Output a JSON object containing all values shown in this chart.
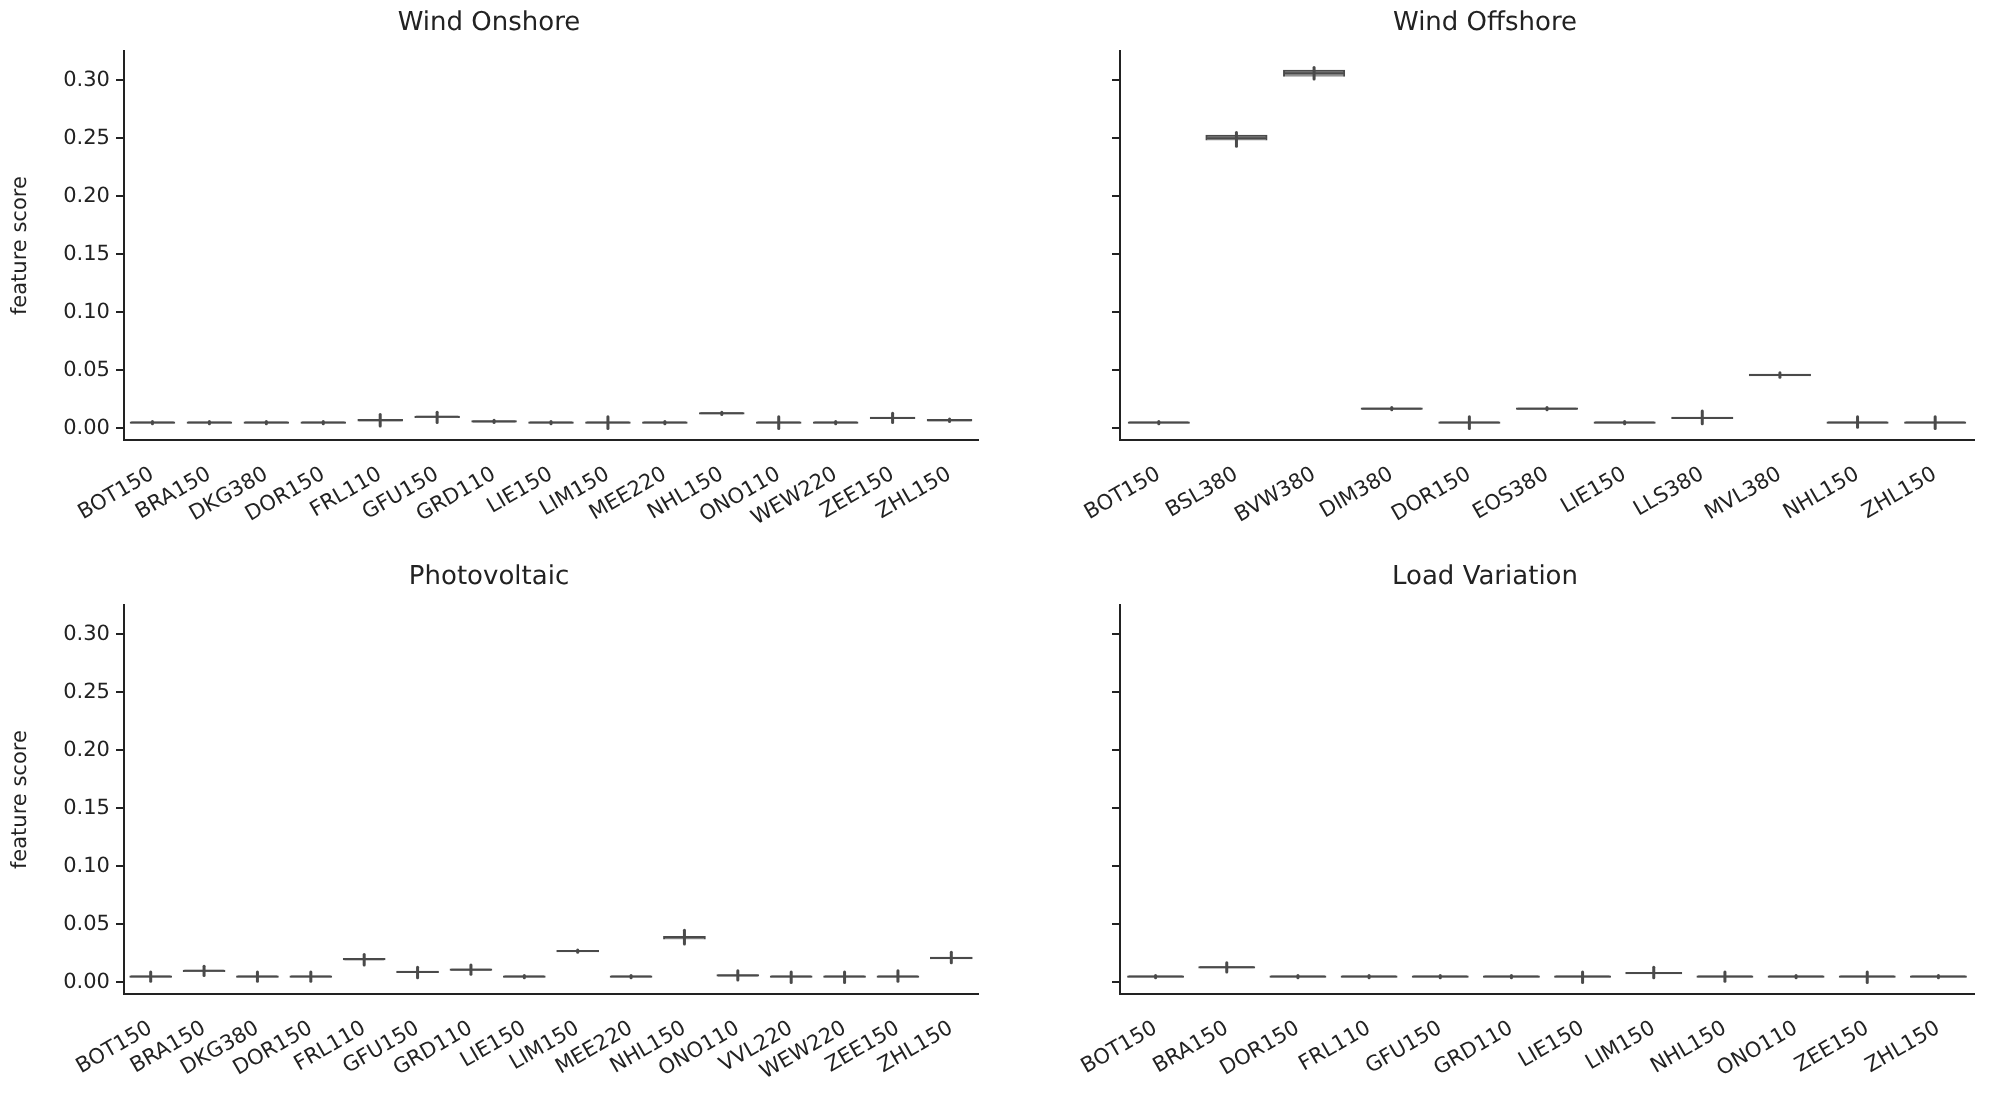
{
  "chart_data": [
    {
      "type": "box",
      "title": "Wind Onshore",
      "ylabel": "feature score",
      "categories": [
        "BOT150",
        "BRA150",
        "DKG380",
        "DOR150",
        "FRL110",
        "GFU150",
        "GRD110",
        "LIE150",
        "LIM150",
        "MEE220",
        "NHL150",
        "ONO110",
        "WEW220",
        "ZEE150",
        "ZHL150"
      ],
      "ylim": [
        -0.01,
        0.325
      ],
      "yticks": [
        {
          "value": 0,
          "label": "0.00"
        },
        {
          "value": 0.05,
          "label": "0.05"
        },
        {
          "value": 0.1,
          "label": "0.10"
        },
        {
          "value": 0.15,
          "label": "0.15"
        },
        {
          "value": 0.2,
          "label": "0.20"
        },
        {
          "value": 0.25,
          "label": "0.25"
        },
        {
          "value": 0.3,
          "label": "0.30"
        }
      ],
      "color": "#4a4a4a",
      "boxes": [
        {
          "low": 0.004,
          "q1": 0.004,
          "median": 0.005,
          "q3": 0.006,
          "high": 0.006
        },
        {
          "low": 0.004,
          "q1": 0.004,
          "median": 0.005,
          "q3": 0.006,
          "high": 0.006
        },
        {
          "low": 0.004,
          "q1": 0.004,
          "median": 0.005,
          "q3": 0.006,
          "high": 0.006
        },
        {
          "low": 0.004,
          "q1": 0.004,
          "median": 0.005,
          "q3": 0.006,
          "high": 0.006
        },
        {
          "low": 0.002,
          "q1": 0.006,
          "median": 0.007,
          "q3": 0.008,
          "high": 0.012
        },
        {
          "low": 0.005,
          "q1": 0.009,
          "median": 0.01,
          "q3": 0.011,
          "high": 0.014
        },
        {
          "low": 0.005,
          "q1": 0.005,
          "median": 0.006,
          "q3": 0.007,
          "high": 0.007
        },
        {
          "low": 0.004,
          "q1": 0.004,
          "median": 0.005,
          "q3": 0.006,
          "high": 0.006
        },
        {
          "low": 0,
          "q1": 0.004,
          "median": 0.005,
          "q3": 0.006,
          "high": 0.01
        },
        {
          "low": 0.004,
          "q1": 0.004,
          "median": 0.005,
          "q3": 0.006,
          "high": 0.006
        },
        {
          "low": 0.012,
          "q1": 0.012,
          "median": 0.013,
          "q3": 0.014,
          "high": 0.014
        },
        {
          "low": 0,
          "q1": 0.004,
          "median": 0.005,
          "q3": 0.006,
          "high": 0.01
        },
        {
          "low": 0.004,
          "q1": 0.004,
          "median": 0.005,
          "q3": 0.006,
          "high": 0.006
        },
        {
          "low": 0.005,
          "q1": 0.008,
          "median": 0.009,
          "q3": 0.01,
          "high": 0.013
        },
        {
          "low": 0.006,
          "q1": 0.006,
          "median": 0.007,
          "q3": 0.008,
          "high": 0.008
        }
      ]
    },
    {
      "type": "box",
      "title": "Wind Offshore",
      "categories": [
        "BOT150",
        "BSL380",
        "BVW380",
        "DIM380",
        "DOR150",
        "EOS380",
        "LIE150",
        "LLS380",
        "MVL380",
        "NHL150",
        "ZHL150"
      ],
      "ylim": [
        -0.01,
        0.325
      ],
      "yticks": [
        {
          "value": 0,
          "label": null
        },
        {
          "value": 0.05,
          "label": null
        },
        {
          "value": 0.1,
          "label": null
        },
        {
          "value": 0.15,
          "label": null
        },
        {
          "value": 0.2,
          "label": null
        },
        {
          "value": 0.25,
          "label": null
        },
        {
          "value": 0.3,
          "label": null
        }
      ],
      "tick_labels": "x",
      "color": "#4a4a4a",
      "boxes": [
        {
          "low": 0.004,
          "q1": 0.004,
          "median": 0.005,
          "q3": 0.006,
          "high": 0.006
        },
        {
          "low": 0.243,
          "q1": 0.248,
          "median": 0.25,
          "q3": 0.253,
          "high": 0.255
        },
        {
          "low": 0.301,
          "q1": 0.303,
          "median": 0.306,
          "q3": 0.309,
          "high": 0.311
        },
        {
          "low": 0.016,
          "q1": 0.016,
          "median": 0.017,
          "q3": 0.018,
          "high": 0.018
        },
        {
          "low": 0,
          "q1": 0.004,
          "median": 0.005,
          "q3": 0.006,
          "high": 0.01
        },
        {
          "low": 0.016,
          "q1": 0.016,
          "median": 0.017,
          "q3": 0.018,
          "high": 0.018
        },
        {
          "low": 0.004,
          "q1": 0.004,
          "median": 0.005,
          "q3": 0.006,
          "high": 0.006
        },
        {
          "low": 0.004,
          "q1": 0.008,
          "median": 0.009,
          "q3": 0.01,
          "high": 0.015
        },
        {
          "low": 0.044,
          "q1": 0.045,
          "median": 0.046,
          "q3": 0.047,
          "high": 0.048
        },
        {
          "low": 0.001,
          "q1": 0.004,
          "median": 0.005,
          "q3": 0.006,
          "high": 0.01
        },
        {
          "low": 0,
          "q1": 0.004,
          "median": 0.005,
          "q3": 0.006,
          "high": 0.01
        }
      ]
    },
    {
      "type": "box",
      "title": "Photovoltaic",
      "ylabel": "feature score",
      "categories": [
        "BOT150",
        "BRA150",
        "DKG380",
        "DOR150",
        "FRL110",
        "GFU150",
        "GRD110",
        "LIE150",
        "LIM150",
        "MEE220",
        "NHL150",
        "ONO110",
        "VVL220",
        "WEW220",
        "ZEE150",
        "ZHL150"
      ],
      "ylim": [
        -0.01,
        0.325
      ],
      "yticks": [
        {
          "value": 0,
          "label": "0.00"
        },
        {
          "value": 0.05,
          "label": "0.05"
        },
        {
          "value": 0.1,
          "label": "0.10"
        },
        {
          "value": 0.15,
          "label": "0.15"
        },
        {
          "value": 0.2,
          "label": "0.20"
        },
        {
          "value": 0.25,
          "label": "0.25"
        },
        {
          "value": 0.3,
          "label": "0.30"
        }
      ],
      "color": "#4a4a4a",
      "boxes": [
        {
          "low": 0.001,
          "q1": 0.004,
          "median": 0.005,
          "q3": 0.006,
          "high": 0.009
        },
        {
          "low": 0.006,
          "q1": 0.009,
          "median": 0.01,
          "q3": 0.011,
          "high": 0.014
        },
        {
          "low": 0.001,
          "q1": 0.004,
          "median": 0.005,
          "q3": 0.006,
          "high": 0.009
        },
        {
          "low": 0.001,
          "q1": 0.004,
          "median": 0.005,
          "q3": 0.006,
          "high": 0.009
        },
        {
          "low": 0.015,
          "q1": 0.019,
          "median": 0.02,
          "q3": 0.021,
          "high": 0.024
        },
        {
          "low": 0.004,
          "q1": 0.008,
          "median": 0.009,
          "q3": 0.01,
          "high": 0.013
        },
        {
          "low": 0.007,
          "q1": 0.01,
          "median": 0.011,
          "q3": 0.012,
          "high": 0.015
        },
        {
          "low": 0.004,
          "q1": 0.004,
          "median": 0.005,
          "q3": 0.006,
          "high": 0.006
        },
        {
          "low": 0.026,
          "q1": 0.026,
          "median": 0.027,
          "q3": 0.028,
          "high": 0.028
        },
        {
          "low": 0.004,
          "q1": 0.004,
          "median": 0.005,
          "q3": 0.006,
          "high": 0.006
        },
        {
          "low": 0.033,
          "q1": 0.037,
          "median": 0.039,
          "q3": 0.04,
          "high": 0.045
        },
        {
          "low": 0.002,
          "q1": 0.005,
          "median": 0.006,
          "q3": 0.007,
          "high": 0.01
        },
        {
          "low": 0,
          "q1": 0.004,
          "median": 0.005,
          "q3": 0.006,
          "high": 0.009
        },
        {
          "low": 0,
          "q1": 0.004,
          "median": 0.005,
          "q3": 0.006,
          "high": 0.009
        },
        {
          "low": 0.001,
          "q1": 0.004,
          "median": 0.005,
          "q3": 0.006,
          "high": 0.01
        },
        {
          "low": 0.017,
          "q1": 0.02,
          "median": 0.021,
          "q3": 0.022,
          "high": 0.026
        }
      ]
    },
    {
      "type": "box",
      "title": "Load Variation",
      "categories": [
        "BOT150",
        "BRA150",
        "DOR150",
        "FRL110",
        "GFU150",
        "GRD110",
        "LIE150",
        "LIM150",
        "NHL150",
        "ONO110",
        "ZEE150",
        "ZHL150"
      ],
      "ylim": [
        -0.01,
        0.325
      ],
      "yticks": [
        {
          "value": 0,
          "label": null
        },
        {
          "value": 0.05,
          "label": null
        },
        {
          "value": 0.1,
          "label": null
        },
        {
          "value": 0.15,
          "label": null
        },
        {
          "value": 0.2,
          "label": null
        },
        {
          "value": 0.25,
          "label": null
        },
        {
          "value": 0.3,
          "label": null
        }
      ],
      "tick_labels": "x",
      "color": "#4a4a4a",
      "boxes": [
        {
          "low": 0.004,
          "q1": 0.004,
          "median": 0.005,
          "q3": 0.006,
          "high": 0.006
        },
        {
          "low": 0.009,
          "q1": 0.012,
          "median": 0.013,
          "q3": 0.014,
          "high": 0.017
        },
        {
          "low": 0.004,
          "q1": 0.004,
          "median": 0.005,
          "q3": 0.006,
          "high": 0.006
        },
        {
          "low": 0.004,
          "q1": 0.004,
          "median": 0.005,
          "q3": 0.006,
          "high": 0.006
        },
        {
          "low": 0.004,
          "q1": 0.004,
          "median": 0.005,
          "q3": 0.006,
          "high": 0.006
        },
        {
          "low": 0.004,
          "q1": 0.004,
          "median": 0.005,
          "q3": 0.006,
          "high": 0.006
        },
        {
          "low": 0,
          "q1": 0.004,
          "median": 0.005,
          "q3": 0.006,
          "high": 0.009
        },
        {
          "low": 0.004,
          "q1": 0.007,
          "median": 0.008,
          "q3": 0.009,
          "high": 0.013
        },
        {
          "low": 0.001,
          "q1": 0.004,
          "median": 0.005,
          "q3": 0.006,
          "high": 0.009
        },
        {
          "low": 0.004,
          "q1": 0.004,
          "median": 0.005,
          "q3": 0.006,
          "high": 0.006
        },
        {
          "low": 0,
          "q1": 0.004,
          "median": 0.005,
          "q3": 0.006,
          "high": 0.009
        },
        {
          "low": 0.004,
          "q1": 0.004,
          "median": 0.005,
          "q3": 0.006,
          "high": 0.006
        }
      ]
    }
  ]
}
